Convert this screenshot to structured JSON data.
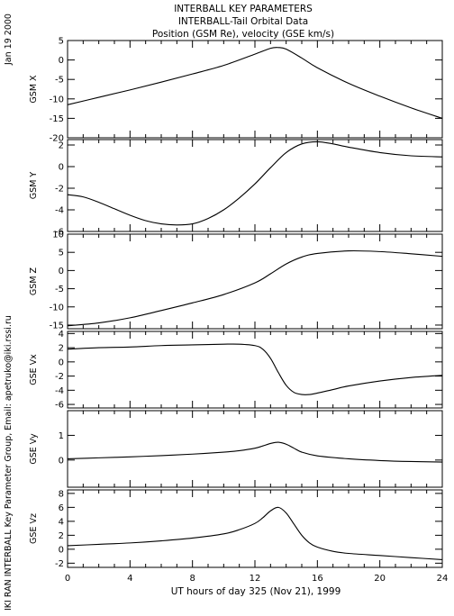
{
  "header": {
    "title_line1": "INTERBALL KEY PARAMETERS",
    "title_line2": "INTERBALL-Tail Orbital Data",
    "title_line3": "Position (GSM Re), velocity (GSE km/s)"
  },
  "side": {
    "date": "Jan 19 2000",
    "credit": "IKI RAN INTERBALL Key Parameter Group, Email: apetruko@iki.rssi.ru"
  },
  "x_axis": {
    "label": "UT hours of day 325 (Nov 21), 1999",
    "ticks": [
      0,
      4,
      8,
      12,
      16,
      20,
      24
    ],
    "range": [
      0,
      24
    ]
  },
  "chart_data": [
    {
      "type": "line",
      "ylabel": "GSM X",
      "ylim": [
        -20,
        5
      ],
      "yticks": [
        5,
        0,
        -5,
        -10,
        -15,
        -20
      ],
      "x": [
        0,
        2,
        4,
        6,
        8,
        10,
        12,
        13,
        13.5,
        14,
        15,
        16,
        18,
        20,
        22,
        24
      ],
      "y": [
        -11.5,
        -9.6,
        -7.7,
        -5.7,
        -3.6,
        -1.4,
        1.5,
        3.0,
        3.2,
        2.8,
        0.5,
        -2.0,
        -6.0,
        -9.3,
        -12.3,
        -15.0
      ]
    },
    {
      "type": "line",
      "ylabel": "GSM Y",
      "ylim": [
        -6,
        2.5
      ],
      "yticks": [
        2,
        0,
        -2,
        -4,
        -6
      ],
      "x": [
        0,
        1,
        2,
        3,
        4,
        5,
        6,
        7,
        8,
        9,
        10,
        11,
        12,
        13,
        14,
        15,
        16,
        17,
        18,
        20,
        22,
        24
      ],
      "y": [
        -2.6,
        -2.8,
        -3.3,
        -3.9,
        -4.5,
        -5.0,
        -5.3,
        -5.4,
        -5.3,
        -4.8,
        -4.0,
        -2.9,
        -1.6,
        -0.1,
        1.3,
        2.1,
        2.3,
        2.1,
        1.8,
        1.3,
        1.0,
        0.9
      ]
    },
    {
      "type": "line",
      "ylabel": "GSM Z",
      "ylim": [
        -16,
        10
      ],
      "yticks": [
        10,
        5,
        0,
        -5,
        -10,
        -15
      ],
      "x": [
        0,
        2,
        4,
        6,
        8,
        10,
        12,
        13,
        14,
        15,
        16,
        18,
        20,
        22,
        24
      ],
      "y": [
        -15.2,
        -14.4,
        -13.0,
        -11.0,
        -8.9,
        -6.6,
        -3.4,
        -0.9,
        1.8,
        3.7,
        4.7,
        5.4,
        5.2,
        4.6,
        3.9
      ]
    },
    {
      "type": "line",
      "ylabel": "GSE Vx",
      "ylim": [
        -6.5,
        4.3
      ],
      "yticks": [
        4,
        2,
        0,
        -2,
        -4,
        -6
      ],
      "x": [
        0,
        2,
        4,
        6,
        8,
        10,
        11,
        12,
        12.5,
        13,
        13.5,
        14,
        14.5,
        15,
        15.5,
        16,
        17,
        18,
        20,
        22,
        24
      ],
      "y": [
        1.8,
        2.0,
        2.1,
        2.3,
        2.4,
        2.5,
        2.5,
        2.3,
        1.8,
        0.5,
        -1.5,
        -3.3,
        -4.3,
        -4.6,
        -4.6,
        -4.4,
        -3.9,
        -3.4,
        -2.7,
        -2.2,
        -1.9
      ]
    },
    {
      "type": "line",
      "ylabel": "GSE Vy",
      "ylim": [
        -1.1,
        2.0
      ],
      "yticks": [
        1,
        0
      ],
      "x": [
        0,
        2,
        4,
        6,
        8,
        10,
        11,
        12,
        12.5,
        13,
        13.5,
        14,
        14.5,
        15,
        16,
        18,
        20,
        22,
        24
      ],
      "y": [
        0.05,
        0.09,
        0.13,
        0.18,
        0.24,
        0.32,
        0.38,
        0.48,
        0.57,
        0.67,
        0.72,
        0.64,
        0.48,
        0.32,
        0.17,
        0.05,
        -0.02,
        -0.06,
        -0.08
      ]
    },
    {
      "type": "line",
      "ylabel": "GSE Vz",
      "ylim": [
        -2.6,
        8.5
      ],
      "yticks": [
        8,
        6,
        4,
        2,
        0,
        -2
      ],
      "x": [
        0,
        2,
        4,
        6,
        8,
        10,
        11,
        12,
        12.5,
        13,
        13.5,
        14,
        14.5,
        15,
        15.5,
        16,
        17,
        18,
        20,
        22,
        24
      ],
      "y": [
        0.5,
        0.7,
        0.9,
        1.2,
        1.6,
        2.2,
        2.8,
        3.7,
        4.5,
        5.5,
        6.0,
        5.2,
        3.6,
        2.0,
        0.9,
        0.3,
        -0.3,
        -0.6,
        -0.9,
        -1.2,
        -1.5
      ]
    }
  ]
}
